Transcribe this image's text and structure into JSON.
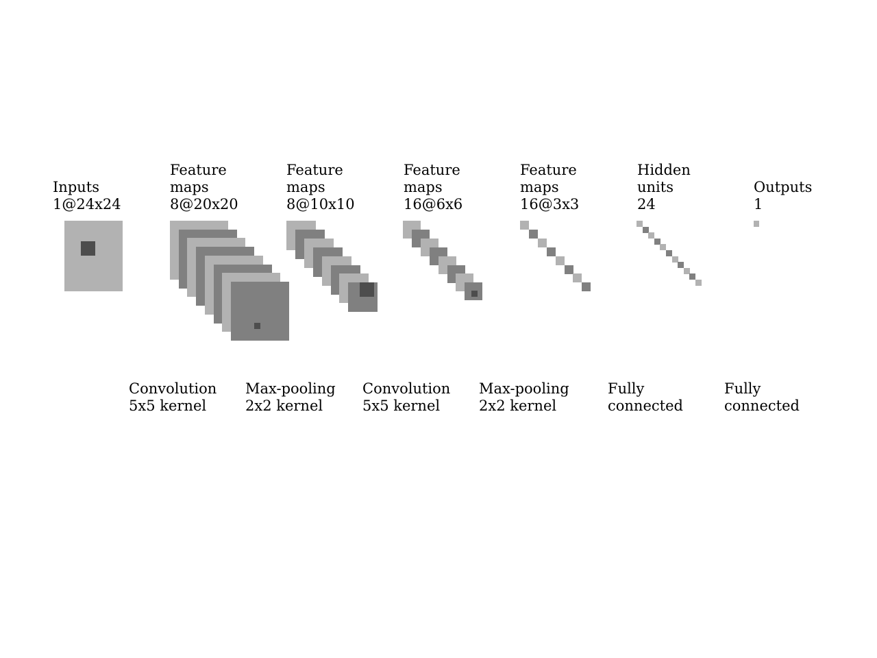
{
  "colors": {
    "light": "#b2b2b2",
    "mid": "#808080",
    "dark": "#4d4d4d",
    "text": "#000000",
    "background": "#ffffff"
  },
  "layers": [
    {
      "name": "inputs",
      "line1": "Inputs",
      "line2": "1@24x24"
    },
    {
      "name": "conv1",
      "line0": "Feature",
      "line1": "maps",
      "line2": "8@20x20"
    },
    {
      "name": "pool1",
      "line0": "Feature",
      "line1": "maps",
      "line2": "8@10x10"
    },
    {
      "name": "conv2",
      "line0": "Feature",
      "line1": "maps",
      "line2": "16@6x6"
    },
    {
      "name": "pool2",
      "line0": "Feature",
      "line1": "maps",
      "line2": "16@3x3"
    },
    {
      "name": "hidden",
      "line0": "Hidden",
      "line1": "units",
      "line2": "24"
    },
    {
      "name": "outputs",
      "line1": "Outputs",
      "line2": "1"
    }
  ],
  "operations": [
    {
      "name": "conv1-op",
      "line1": "Convolution",
      "line2": "5x5 kernel"
    },
    {
      "name": "pool1-op",
      "line1": "Max-pooling",
      "line2": "2x2 kernel"
    },
    {
      "name": "conv2-op",
      "line1": "Convolution",
      "line2": "5x5 kernel"
    },
    {
      "name": "pool2-op",
      "line1": "Max-pooling",
      "line2": "2x2 kernel"
    },
    {
      "name": "fc1-op",
      "line1": "Fully",
      "line2": "connected"
    },
    {
      "name": "fc2-op",
      "line1": "Fully",
      "line2": "connected"
    }
  ]
}
